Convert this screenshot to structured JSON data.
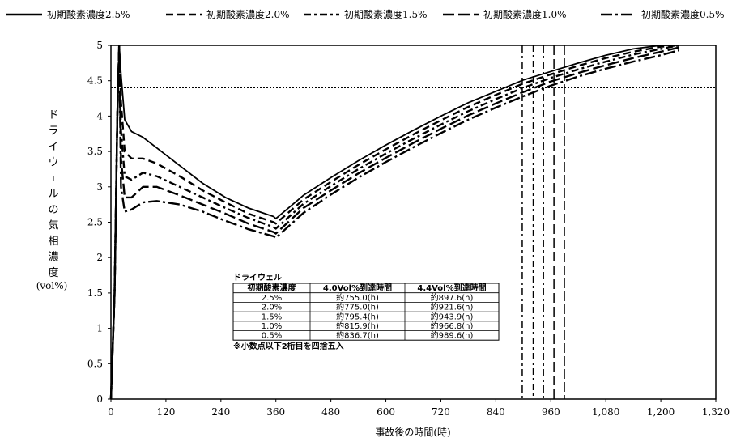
{
  "chart_data": {
    "type": "line",
    "xlabel": "事故後の時間(時)",
    "ylabel": "ドライウェルの気相濃度",
    "yunit": "(vol%)",
    "xlim": [
      0,
      1320
    ],
    "ylim": [
      0,
      5
    ],
    "x_ticks": [
      0,
      120,
      240,
      360,
      480,
      600,
      720,
      840,
      960,
      1080,
      1200,
      1320
    ],
    "x_tick_labels": [
      "0",
      "120",
      "240",
      "360",
      "480",
      "600",
      "720",
      "840",
      "960",
      "1,080",
      "1,200",
      "1,320"
    ],
    "y_ticks": [
      0,
      0.5,
      1,
      1.5,
      2,
      2.5,
      3,
      3.5,
      4,
      4.5,
      5
    ],
    "y_tick_labels": [
      "0",
      "0.5",
      "1",
      "1.5",
      "2",
      "2.5",
      "3",
      "3.5",
      "4",
      "4.5",
      "5"
    ],
    "threshold_y": 4.4,
    "series": [
      {
        "name": "初期酸素濃度2.5%",
        "dash": "solid",
        "x": [
          0,
          8,
          14,
          18,
          22,
          30,
          45,
          70,
          100,
          150,
          200,
          250,
          300,
          355,
          360,
          420,
          480,
          540,
          600,
          660,
          720,
          780,
          840,
          900,
          960,
          1020,
          1080,
          1140,
          1200,
          1240
        ],
        "y": [
          0,
          1.5,
          4,
          5,
          4.6,
          3.95,
          3.78,
          3.7,
          3.55,
          3.3,
          3.05,
          2.85,
          2.7,
          2.58,
          2.55,
          2.88,
          3.13,
          3.37,
          3.59,
          3.8,
          4.0,
          4.19,
          4.35,
          4.51,
          4.63,
          4.75,
          4.86,
          4.95,
          5.0,
          5.0
        ]
      },
      {
        "name": "初期酸素濃度2.0%",
        "dash": "dash",
        "x": [
          0,
          8,
          14,
          18,
          22,
          30,
          45,
          70,
          100,
          150,
          200,
          250,
          300,
          355,
          360,
          420,
          480,
          540,
          600,
          660,
          720,
          780,
          840,
          900,
          960,
          1020,
          1080,
          1140,
          1200,
          1240
        ],
        "y": [
          0,
          1.5,
          4,
          5,
          4.2,
          3.5,
          3.4,
          3.4,
          3.33,
          3.15,
          2.95,
          2.78,
          2.62,
          2.5,
          2.48,
          2.82,
          3.07,
          3.31,
          3.53,
          3.74,
          3.94,
          4.13,
          4.3,
          4.46,
          4.59,
          4.71,
          4.82,
          4.91,
          4.98,
          5.0
        ]
      },
      {
        "name": "初期酸素濃度1.5%",
        "dash": "dashdot",
        "x": [
          0,
          8,
          14,
          18,
          22,
          30,
          45,
          70,
          100,
          150,
          200,
          250,
          300,
          355,
          360,
          420,
          480,
          540,
          600,
          660,
          720,
          780,
          840,
          900,
          960,
          1020,
          1080,
          1140,
          1200,
          1240
        ],
        "y": [
          0,
          1.5,
          4,
          5,
          3.8,
          3.15,
          3.1,
          3.2,
          3.15,
          3.0,
          2.85,
          2.7,
          2.56,
          2.43,
          2.41,
          2.76,
          3.01,
          3.25,
          3.47,
          3.68,
          3.88,
          4.07,
          4.24,
          4.4,
          4.54,
          4.66,
          4.77,
          4.87,
          4.95,
          5.0
        ]
      },
      {
        "name": "初期酸素濃度1.0%",
        "dash": "longdash",
        "x": [
          0,
          8,
          14,
          18,
          22,
          30,
          45,
          70,
          100,
          150,
          200,
          250,
          300,
          355,
          360,
          420,
          480,
          540,
          600,
          660,
          720,
          780,
          840,
          900,
          960,
          1020,
          1080,
          1140,
          1200,
          1240
        ],
        "y": [
          0,
          1.5,
          4,
          5,
          3.4,
          2.85,
          2.85,
          3.0,
          3.0,
          2.88,
          2.75,
          2.62,
          2.48,
          2.36,
          2.34,
          2.7,
          2.95,
          3.19,
          3.41,
          3.62,
          3.82,
          4.01,
          4.18,
          4.34,
          4.49,
          4.61,
          4.72,
          4.82,
          4.91,
          4.97
        ]
      },
      {
        "name": "初期酸素濃度0.5%",
        "dash": "dashdotlong",
        "x": [
          0,
          8,
          14,
          18,
          22,
          30,
          45,
          70,
          100,
          150,
          200,
          250,
          300,
          355,
          360,
          420,
          480,
          540,
          600,
          660,
          720,
          780,
          840,
          900,
          960,
          1020,
          1080,
          1140,
          1200,
          1240
        ],
        "y": [
          0,
          1.5,
          4,
          5,
          3.0,
          2.65,
          2.68,
          2.78,
          2.8,
          2.75,
          2.65,
          2.52,
          2.4,
          2.3,
          2.28,
          2.63,
          2.89,
          3.13,
          3.35,
          3.56,
          3.76,
          3.95,
          4.12,
          4.28,
          4.43,
          4.56,
          4.67,
          4.77,
          4.86,
          4.93
        ]
      }
    ],
    "vlines": [
      897.6,
      921.6,
      943.9,
      966.8,
      989.6
    ],
    "table": {
      "title": "ドライウェル",
      "headers": [
        "初期酸素濃度",
        "4.0Vol%到達時間",
        "4.4Vol%到達時間"
      ],
      "rows": [
        [
          "2.5%",
          "約755.0(h)",
          "約897.6(h)"
        ],
        [
          "2.0%",
          "約775.0(h)",
          "約921.6(h)"
        ],
        [
          "1.5%",
          "約795.4(h)",
          "約943.9(h)"
        ],
        [
          "1.0%",
          "約815.9(h)",
          "約966.8(h)"
        ],
        [
          "0.5%",
          "約836.7(h)",
          "約989.6(h)"
        ]
      ],
      "note": "※小数点以下2桁目を四捨五入"
    }
  }
}
